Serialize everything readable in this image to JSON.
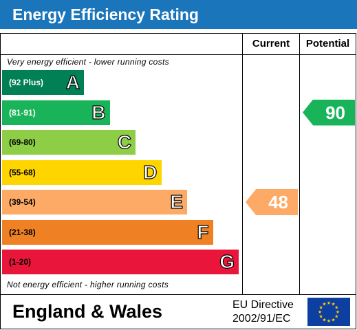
{
  "header": {
    "title": "Energy Efficiency Rating"
  },
  "columns": {
    "current": "Current",
    "potential": "Potential"
  },
  "notes": {
    "top": "Very energy efficient - lower running costs",
    "bottom": "Not energy efficient - higher running costs"
  },
  "chart_data": {
    "type": "bar",
    "title": "Energy Efficiency Rating",
    "bands": [
      {
        "letter": "A",
        "range": "(92 Plus)",
        "color": "#008054",
        "range_color": "#ffffff"
      },
      {
        "letter": "B",
        "range": "(81-91)",
        "color": "#19b459",
        "range_color": "#ffffff"
      },
      {
        "letter": "C",
        "range": "(69-80)",
        "color": "#8dce46",
        "range_color": "#000000"
      },
      {
        "letter": "D",
        "range": "(55-68)",
        "color": "#ffd500",
        "range_color": "#000000"
      },
      {
        "letter": "E",
        "range": "(39-54)",
        "color": "#fcaa65",
        "range_color": "#000000"
      },
      {
        "letter": "F",
        "range": "(21-38)",
        "color": "#ef8023",
        "range_color": "#000000"
      },
      {
        "letter": "G",
        "range": "(1-20)",
        "color": "#e9153b",
        "range_color": "#000000"
      }
    ],
    "current": {
      "value": 48,
      "band": "E",
      "color": "#fcaa65"
    },
    "potential": {
      "value": 90,
      "band": "B",
      "color": "#19b459"
    }
  },
  "footer": {
    "region": "England & Wales",
    "directive_line1": "EU Directive",
    "directive_line2": "2002/91/EC"
  },
  "colors": {
    "header_bg": "#1a75bb",
    "flag_bg": "#0d3fa0",
    "flag_stars": "#ffcc00"
  }
}
